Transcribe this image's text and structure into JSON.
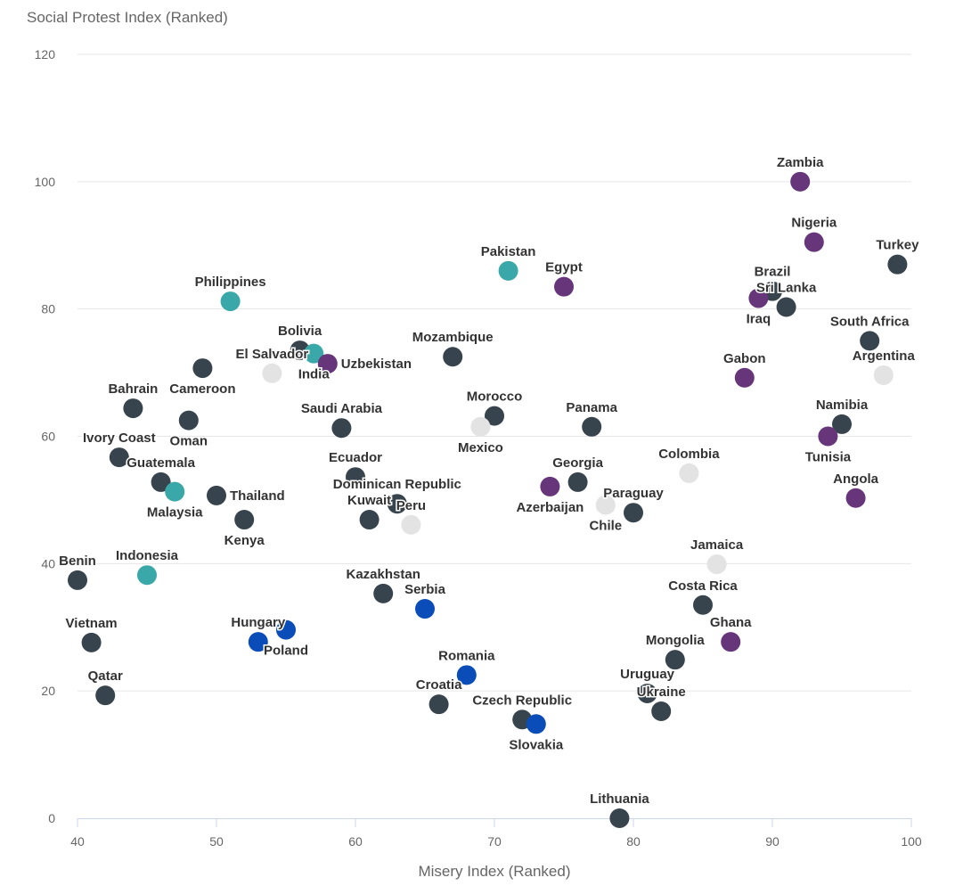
{
  "chart_data": {
    "type": "scatter",
    "title": "",
    "xlabel": "Misery Index (Ranked)",
    "ylabel": "Social Protest Index (Ranked)",
    "xlim": [
      40,
      100
    ],
    "ylim": [
      0,
      120
    ],
    "xticks": [
      40,
      50,
      60,
      70,
      80,
      90,
      100
    ],
    "yticks": [
      0,
      20,
      40,
      60,
      80,
      100,
      120
    ],
    "grid": true,
    "points": [
      {
        "label": "Bolivia",
        "x": 56,
        "y": 73.5,
        "color": "#37444d"
      },
      {
        "label": "Zambia",
        "x": 92,
        "y": 100,
        "color": "#66357a"
      },
      {
        "label": "Nigeria",
        "x": 93,
        "y": 90.5,
        "color": "#66357a"
      },
      {
        "label": "Turkey",
        "x": 99,
        "y": 87,
        "color": "#37444d"
      },
      {
        "label": "Brazil",
        "x": 90,
        "y": 82.8,
        "color": "#37444d"
      },
      {
        "label": "Iraq",
        "x": 89,
        "y": 81.7,
        "color": "#66357a"
      },
      {
        "label": "Sri Lanka",
        "x": 91,
        "y": 80.3,
        "color": "#37444d"
      },
      {
        "label": "South Africa",
        "x": 97,
        "y": 75,
        "color": "#37444d"
      },
      {
        "label": "Argentina",
        "x": 98,
        "y": 69.6,
        "color": "#e3e3e3"
      },
      {
        "label": "Gabon",
        "x": 88,
        "y": 69.2,
        "color": "#66357a"
      },
      {
        "label": "Namibia",
        "x": 95,
        "y": 61.9,
        "color": "#37444d"
      },
      {
        "label": "Tunisia",
        "x": 94,
        "y": 60,
        "color": "#66357a"
      },
      {
        "label": "Angola",
        "x": 96,
        "y": 50.3,
        "color": "#66357a"
      },
      {
        "label": "Colombia",
        "x": 84,
        "y": 54.2,
        "color": "#e3e3e3"
      },
      {
        "label": "Jamaica",
        "x": 86,
        "y": 39.9,
        "color": "#e3e3e3"
      },
      {
        "label": "Costa Rica",
        "x": 85,
        "y": 33.5,
        "color": "#37444d"
      },
      {
        "label": "Ghana",
        "x": 87,
        "y": 27.7,
        "color": "#66357a"
      },
      {
        "label": "Mongolia",
        "x": 83,
        "y": 24.9,
        "color": "#37444d"
      },
      {
        "label": "Uruguay",
        "x": 81,
        "y": 19.6,
        "color": "#37444d"
      },
      {
        "label": "Ukraine",
        "x": 82,
        "y": 16.8,
        "color": "#37444d"
      },
      {
        "label": "Lithuania",
        "x": 79,
        "y": 0,
        "color": "#37444d"
      },
      {
        "label": "Paraguay",
        "x": 80,
        "y": 48,
        "color": "#37444d"
      },
      {
        "label": "Chile",
        "x": 78,
        "y": 49.2,
        "color": "#e3e3e3"
      },
      {
        "label": "Georgia",
        "x": 76,
        "y": 52.8,
        "color": "#37444d"
      },
      {
        "label": "Azerbaijan",
        "x": 74,
        "y": 52.1,
        "color": "#66357a"
      },
      {
        "label": "Panama",
        "x": 77,
        "y": 61.5,
        "color": "#37444d"
      },
      {
        "label": "Egypt",
        "x": 75,
        "y": 83.5,
        "color": "#66357a"
      },
      {
        "label": "Pakistan",
        "x": 71,
        "y": 86,
        "color": "#3aa8a8"
      },
      {
        "label": "Morocco",
        "x": 70,
        "y": 63.2,
        "color": "#37444d"
      },
      {
        "label": "Mexico",
        "x": 69,
        "y": 61.5,
        "color": "#e3e3e3"
      },
      {
        "label": "Mozambique",
        "x": 67,
        "y": 72.5,
        "color": "#37444d"
      },
      {
        "label": "Czech Republic",
        "x": 72,
        "y": 15.5,
        "color": "#37444d"
      },
      {
        "label": "Slovakia",
        "x": 73,
        "y": 14.8,
        "color": "#0a4db8"
      },
      {
        "label": "Romania",
        "x": 68,
        "y": 22.5,
        "color": "#0a4db8"
      },
      {
        "label": "Croatia",
        "x": 66,
        "y": 17.9,
        "color": "#37444d"
      },
      {
        "label": "Serbia",
        "x": 65,
        "y": 32.9,
        "color": "#0a4db8"
      },
      {
        "label": "Kazakhstan",
        "x": 62,
        "y": 35.3,
        "color": "#37444d"
      },
      {
        "label": "Peru",
        "x": 64,
        "y": 46.1,
        "color": "#e3e3e3"
      },
      {
        "label": "Kuwait",
        "x": 61,
        "y": 46.9,
        "color": "#37444d"
      },
      {
        "label": "Dominican Republic",
        "x": 63,
        "y": 49.4,
        "color": "#37444d"
      },
      {
        "label": "Ecuador",
        "x": 60,
        "y": 53.6,
        "color": "#37444d"
      },
      {
        "label": "Saudi Arabia",
        "x": 59,
        "y": 61.3,
        "color": "#37444d"
      },
      {
        "label": "India",
        "x": 57,
        "y": 73,
        "color": "#3aa8a8"
      },
      {
        "label": "Uzbekistan",
        "x": 58,
        "y": 71.4,
        "color": "#66357a"
      },
      {
        "label": "El Salvador",
        "x": 54,
        "y": 69.9,
        "color": "#e3e3e3"
      },
      {
        "label": "Philippines",
        "x": 51,
        "y": 81.2,
        "color": "#3aa8a8"
      },
      {
        "label": "Cameroon",
        "x": 49,
        "y": 70.7,
        "color": "#37444d"
      },
      {
        "label": "Oman",
        "x": 48,
        "y": 62.5,
        "color": "#37444d"
      },
      {
        "label": "Bahrain",
        "x": 44,
        "y": 64.4,
        "color": "#37444d"
      },
      {
        "label": "Ivory Coast",
        "x": 43,
        "y": 56.7,
        "color": "#37444d"
      },
      {
        "label": "Guatemala",
        "x": 46,
        "y": 52.8,
        "color": "#37444d"
      },
      {
        "label": "Malaysia",
        "x": 47,
        "y": 51.3,
        "color": "#3aa8a8"
      },
      {
        "label": "Thailand",
        "x": 50,
        "y": 50.7,
        "color": "#37444d"
      },
      {
        "label": "Kenya",
        "x": 52,
        "y": 46.9,
        "color": "#37444d"
      },
      {
        "label": "Indonesia",
        "x": 45,
        "y": 38.2,
        "color": "#3aa8a8"
      },
      {
        "label": "Benin",
        "x": 40,
        "y": 37.4,
        "color": "#37444d"
      },
      {
        "label": "Vietnam",
        "x": 41,
        "y": 27.6,
        "color": "#37444d"
      },
      {
        "label": "Qatar",
        "x": 42,
        "y": 19.3,
        "color": "#37444d"
      },
      {
        "label": "Hungary",
        "x": 53,
        "y": 27.7,
        "color": "#0a4db8"
      },
      {
        "label": "Poland",
        "x": 55,
        "y": 29.6,
        "color": "#0a4db8"
      }
    ]
  }
}
